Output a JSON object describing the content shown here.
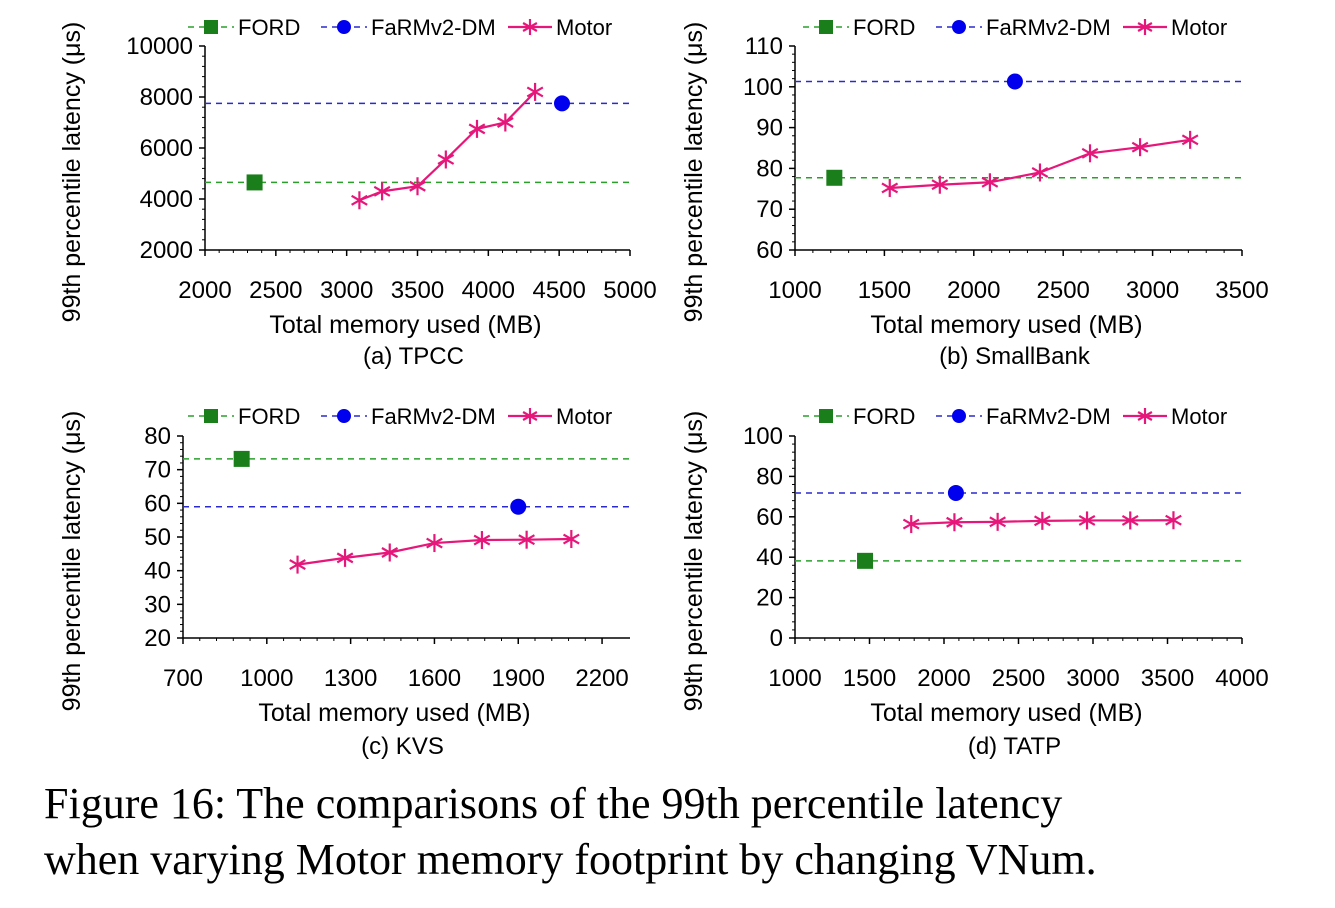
{
  "legend": {
    "ford": "FORD",
    "farm": "FaRMv2-DM",
    "motor": "Motor"
  },
  "colors": {
    "ford": "#1a7f1a",
    "farm": "#0000ee",
    "motor": "#e6177a",
    "ford_line": "#2aa02a",
    "farm_line": "#2a2ad0"
  },
  "caption": {
    "line1": "Figure 16: The comparisons of the 99th percentile latency",
    "line2": "when varying Motor memory footprint by changing VNum."
  },
  "chart_data": [
    {
      "id": "a",
      "type": "line",
      "subtitle": "(a) TPCC",
      "xlabel": "Total memory used (MB)",
      "ylabel": "99th percentile latency (μs)",
      "xlim": [
        2000,
        5000
      ],
      "ylim": [
        2000,
        10000
      ],
      "xticks": [
        2000,
        2500,
        3000,
        3500,
        4000,
        4500,
        5000
      ],
      "yticks": [
        2000,
        4000,
        6000,
        8000,
        10000
      ],
      "series": [
        {
          "name": "FORD",
          "x": [
            2350
          ],
          "y": [
            4650
          ]
        },
        {
          "name": "FaRMv2-DM",
          "x": [
            4520
          ],
          "y": [
            7750
          ]
        },
        {
          "name": "Motor",
          "x": [
            3090,
            3250,
            3500,
            3700,
            3920,
            4120,
            4330
          ],
          "y": [
            3950,
            4300,
            4500,
            5550,
            6750,
            7000,
            8200
          ]
        }
      ]
    },
    {
      "id": "b",
      "type": "line",
      "subtitle": "(b) SmallBank",
      "xlabel": "Total memory used (MB)",
      "ylabel": "99th percentile latency (μs)",
      "xlim": [
        1000,
        3500
      ],
      "ylim": [
        60,
        110
      ],
      "xticks": [
        1000,
        1500,
        2000,
        2500,
        3000,
        3500
      ],
      "yticks": [
        60,
        70,
        80,
        90,
        100,
        110
      ],
      "series": [
        {
          "name": "FORD",
          "x": [
            1220
          ],
          "y": [
            77.7
          ]
        },
        {
          "name": "FaRMv2-DM",
          "x": [
            2230
          ],
          "y": [
            101.3
          ]
        },
        {
          "name": "Motor",
          "x": [
            1530,
            1810,
            2090,
            2370,
            2650,
            2930,
            3210
          ],
          "y": [
            75.2,
            76.0,
            76.6,
            79.0,
            83.7,
            85.2,
            87.0
          ]
        }
      ]
    },
    {
      "id": "c",
      "type": "line",
      "subtitle": "(c) KVS",
      "xlabel": "Total memory used (MB)",
      "ylabel": "99th percentile latency (μs)",
      "xlim": [
        700,
        2300
      ],
      "ylim": [
        20,
        80
      ],
      "xticks": [
        700,
        1000,
        1300,
        1600,
        1900,
        2200
      ],
      "yticks": [
        20,
        30,
        40,
        50,
        60,
        70,
        80
      ],
      "series": [
        {
          "name": "FORD",
          "x": [
            910
          ],
          "y": [
            73.2
          ]
        },
        {
          "name": "FaRMv2-DM",
          "x": [
            1900
          ],
          "y": [
            59.0
          ]
        },
        {
          "name": "Motor",
          "x": [
            1110,
            1280,
            1440,
            1600,
            1770,
            1930,
            2090
          ],
          "y": [
            41.8,
            43.8,
            45.4,
            48.2,
            49.1,
            49.2,
            49.4
          ]
        }
      ]
    },
    {
      "id": "d",
      "type": "line",
      "subtitle": "(d) TATP",
      "xlabel": "Total memory used (MB)",
      "ylabel": "99th percentile latency (μs)",
      "xlim": [
        1000,
        4000
      ],
      "ylim": [
        0,
        100
      ],
      "xticks": [
        1000,
        1500,
        2000,
        2500,
        3000,
        3500,
        4000
      ],
      "yticks": [
        0,
        20,
        40,
        60,
        80,
        100
      ],
      "series": [
        {
          "name": "FORD",
          "x": [
            1470
          ],
          "y": [
            38.2
          ]
        },
        {
          "name": "FaRMv2-DM",
          "x": [
            2080
          ],
          "y": [
            71.8
          ]
        },
        {
          "name": "Motor",
          "x": [
            1780,
            2070,
            2360,
            2660,
            2960,
            3250,
            3540
          ],
          "y": [
            56.4,
            57.3,
            57.5,
            58.0,
            58.2,
            58.2,
            58.3
          ]
        }
      ]
    }
  ]
}
